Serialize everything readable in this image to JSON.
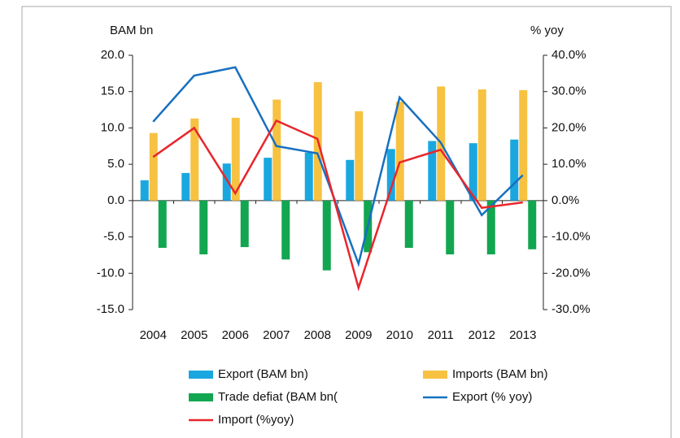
{
  "chart_data": {
    "type": "bar_line",
    "y_label": "BAM bn",
    "y2_label": "% yoy",
    "categories": [
      "2004",
      "2005",
      "2006",
      "2007",
      "2008",
      "2009",
      "2010",
      "2011",
      "2012",
      "2013"
    ],
    "series": [
      {
        "name": "Export (BAM bn)",
        "type": "bar",
        "color": "#1aa7e0",
        "values": [
          2.8,
          3.8,
          5.1,
          5.9,
          6.6,
          5.6,
          7.1,
          8.2,
          7.9,
          8.4
        ]
      },
      {
        "name": "Imports (BAM bn)",
        "type": "bar",
        "color": "#f7c242",
        "values": [
          9.3,
          11.3,
          11.4,
          13.9,
          16.3,
          12.3,
          13.6,
          15.7,
          15.3,
          15.2
        ]
      },
      {
        "name": "Trade defiat (BAM bn(",
        "type": "bar",
        "color": "#12a650",
        "values": [
          -6.5,
          -7.4,
          -6.4,
          -8.1,
          -9.6,
          -7.1,
          -6.5,
          -7.4,
          -7.4,
          -6.7
        ]
      },
      {
        "name": "Export (% yoy)",
        "type": "line",
        "axis": "y2",
        "color": "#1670c0",
        "values": [
          21.7,
          34.4,
          36.7,
          15,
          13,
          -17.4,
          28.4,
          16,
          -4,
          7
        ]
      },
      {
        "name": "Import (%yoy)",
        "type": "line",
        "axis": "y2",
        "color": "#e8262c",
        "values": [
          12,
          20,
          2,
          22,
          17,
          -24,
          10.5,
          14,
          -2,
          -0.5
        ]
      }
    ],
    "ylim": [
      -15,
      20
    ],
    "yticks": [
      {
        "value": -15,
        "label": "-15.0"
      },
      {
        "value": -10,
        "label": "-10.0"
      },
      {
        "value": -5,
        "label": "-5.0"
      },
      {
        "value": 0,
        "label": "0.0"
      },
      {
        "value": 5,
        "label": "5.0"
      },
      {
        "value": 10,
        "label": "10.0"
      },
      {
        "value": 15,
        "label": "15.0"
      },
      {
        "value": 20,
        "label": "20.0"
      }
    ],
    "y2lim": [
      -30,
      40
    ],
    "y2ticks": [
      {
        "value": -30,
        "label": "-30.0%"
      },
      {
        "value": -20,
        "label": "-20.0%"
      },
      {
        "value": -10,
        "label": "-10.0%"
      },
      {
        "value": 0,
        "label": "0.0%"
      },
      {
        "value": 10,
        "label": "10.0%"
      },
      {
        "value": 20,
        "label": "20.0%"
      },
      {
        "value": 30,
        "label": "30.0%"
      },
      {
        "value": 40,
        "label": "40.0%"
      }
    ]
  }
}
